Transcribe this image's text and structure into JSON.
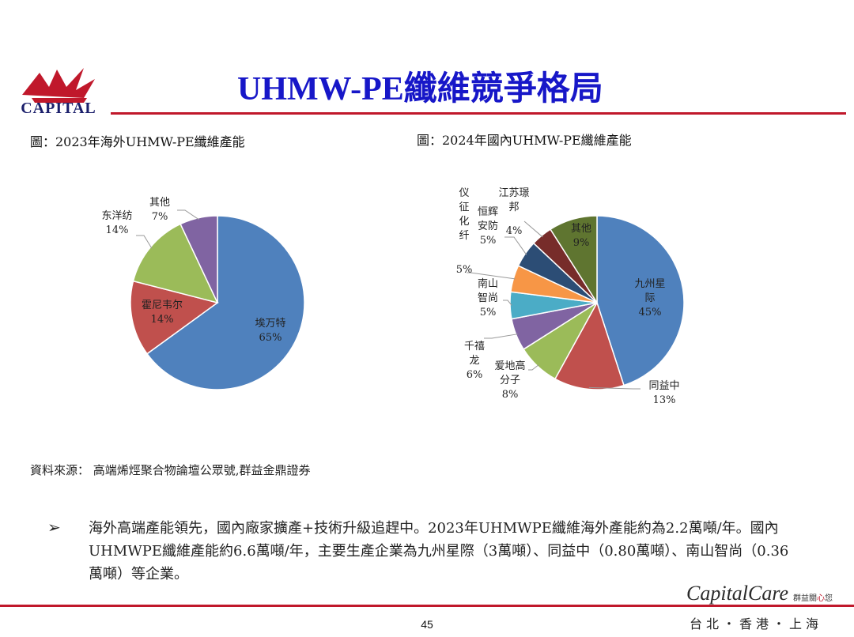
{
  "header": {
    "logo_text": "CAPITAL",
    "title": "UHMW-PE纖維競爭格局"
  },
  "chart_data": [
    {
      "type": "pie",
      "caption": "圖：2023年海外UHMW-PE纖維產能",
      "slices": [
        {
          "name": "埃万特",
          "value": 65,
          "label": "65%",
          "color": "#4f81bd"
        },
        {
          "name": "霍尼韦尔",
          "value": 14,
          "label": "14%",
          "color": "#c0504d"
        },
        {
          "name": "东洋纺",
          "value": 14,
          "label": "14%",
          "color": "#9bbb59"
        },
        {
          "name": "其他",
          "value": 7,
          "label": "7%",
          "color": "#8064a2"
        }
      ]
    },
    {
      "type": "pie",
      "caption": "圖：2024年國內UHMW-PE纖維產能",
      "slices": [
        {
          "name": "九州星际",
          "value": 45,
          "label": "45%",
          "color": "#4f81bd"
        },
        {
          "name": "同益中",
          "value": 13,
          "label": "13%",
          "color": "#c0504d"
        },
        {
          "name": "爱地高分子",
          "value": 8,
          "label": "8%",
          "color": "#9bbb59"
        },
        {
          "name": "千禧龙",
          "value": 6,
          "label": "6%",
          "color": "#8064a2"
        },
        {
          "name": "南山智尚",
          "value": 5,
          "label": "5%",
          "color": "#4bacc6"
        },
        {
          "name": "仪征化纤",
          "value": 5,
          "label": "5%",
          "color": "#f79646"
        },
        {
          "name": "恒辉安防",
          "value": 5,
          "label": "5%",
          "color": "#2c4d75"
        },
        {
          "name": "江苏璟邦",
          "value": 4,
          "label": "4%",
          "color": "#772c2a"
        },
        {
          "name": "其他",
          "value": 9,
          "label": "9%",
          "color": "#5f7530"
        }
      ]
    }
  ],
  "source": "資料來源： 高端烯烴聚合物論壇公眾號,群益金鼎證券",
  "bullet": {
    "mark": "➢",
    "text": "海外高端產能領先，國內廠家擴產+技術升級追趕中。2023年UHMWPE纖維海外產能約為2.2萬噸/年。國內UHMWPE纖維產能約6.6萬噸/年，主要生產企業為九州星際（3萬噸）、同益中（0.80萬噸）、南山智尚（0.36萬噸）等企業。"
  },
  "footer": {
    "page_number": "45",
    "brand_part1": "Capital",
    "brand_part2": "Care",
    "brand_sub_a": "群益關",
    "brand_sub_heart": "心",
    "brand_sub_b": "您",
    "cities": "台北・香港・上海"
  }
}
